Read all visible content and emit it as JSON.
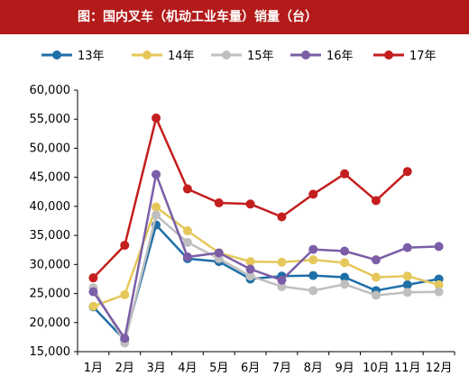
{
  "chart_data": {
    "type": "line",
    "title": "图：国内叉车（机动工业车量）销量（台）",
    "xlabel": "",
    "ylabel": "",
    "categories": [
      "1月",
      "2月",
      "3月",
      "4月",
      "5月",
      "6月",
      "7月",
      "8月",
      "9月",
      "10月",
      "11月",
      "12月"
    ],
    "ylim": [
      15000,
      60000
    ],
    "y_ticks": [
      15000,
      20000,
      25000,
      30000,
      35000,
      40000,
      45000,
      50000,
      55000,
      60000
    ],
    "y_tick_labels": [
      "15,000",
      "20,000",
      "25,000",
      "30,000",
      "35,000",
      "40,000",
      "45,000",
      "50,000",
      "55,000",
      "60,000"
    ],
    "grid": false,
    "legend_position": "top",
    "series": [
      {
        "name": "13年",
        "color": "#1f6fa8",
        "values": [
          22700,
          17000,
          36800,
          31000,
          30500,
          27500,
          28000,
          28100,
          27800,
          25500,
          26500,
          27500
        ]
      },
      {
        "name": "14年",
        "color": "#e6c75a",
        "values": [
          22800,
          24800,
          39900,
          35800,
          32000,
          30500,
          30400,
          30800,
          30300,
          27800,
          28000,
          26500
        ]
      },
      {
        "name": "15年",
        "color": "#bfbfbf",
        "values": [
          26000,
          16500,
          38500,
          33800,
          31000,
          28000,
          26200,
          25500,
          26600,
          24700,
          25200,
          25300
        ]
      },
      {
        "name": "16年",
        "color": "#7b5ea6",
        "values": [
          25300,
          17300,
          45500,
          31300,
          32000,
          29200,
          27300,
          32600,
          32300,
          30800,
          32900,
          33100
        ]
      },
      {
        "name": "17年",
        "color": "#c41e1e",
        "values": [
          27700,
          33300,
          55200,
          43000,
          40600,
          40400,
          38200,
          42100,
          45600,
          41000,
          46000,
          null
        ]
      }
    ]
  }
}
